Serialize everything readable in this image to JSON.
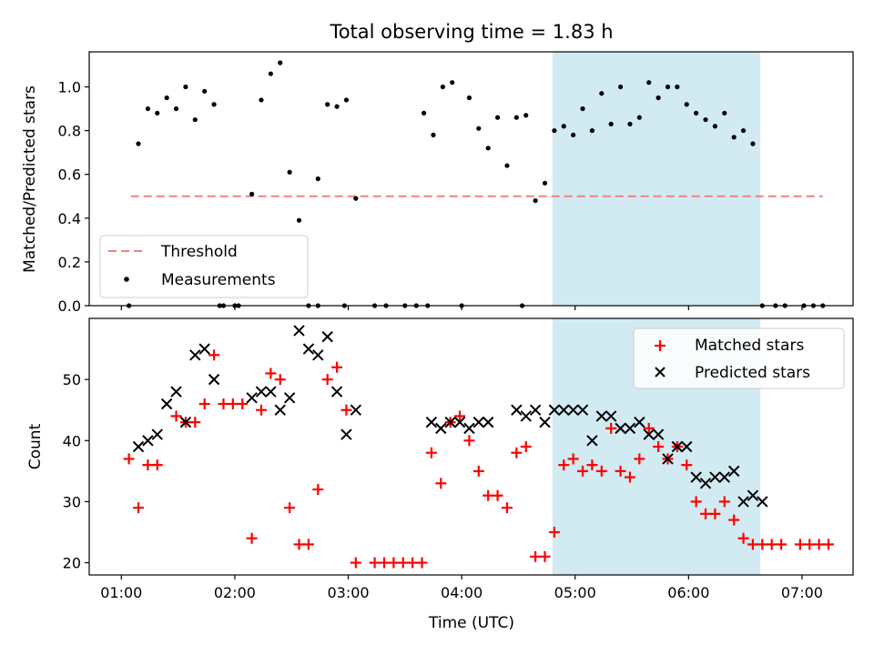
{
  "chart_data": [
    {
      "type": "scatter",
      "title": "Total observing time = 1.83 h",
      "ylabel": "Matched/Predicted stars",
      "xlim": [
        "00:43",
        "07:27"
      ],
      "ylim": [
        0,
        1.16
      ],
      "yticks": [
        "0.0",
        "0.2",
        "0.4",
        "0.6",
        "0.8",
        "1.0"
      ],
      "threshold": {
        "label": "Threshold",
        "value": 0.5,
        "x_start": "01:05",
        "x_end": "07:11",
        "color": "#f08080"
      },
      "highlight": {
        "x_start": "04:48",
        "x_end": "06:38",
        "color": "#add8e6"
      },
      "legend": {
        "placement": "lower-left",
        "entries": [
          "Threshold",
          "Measurements"
        ]
      },
      "series": [
        {
          "name": "Measurements",
          "color": "#000000",
          "x": [
            "01:04",
            "01:09",
            "01:14",
            "01:19",
            "01:24",
            "01:29",
            "01:34",
            "01:39",
            "01:44",
            "01:49",
            "01:54",
            "02:09",
            "02:14",
            "02:19",
            "02:24",
            "02:29",
            "02:34",
            "02:39",
            "02:44",
            "02:49",
            "02:54",
            "02:59",
            "03:04",
            "04:04",
            "04:09",
            "04:14",
            "04:19",
            "04:24",
            "04:29",
            "04:34",
            "04:39",
            "04:44",
            "04:49",
            "04:54",
            "04:59",
            "05:04",
            "05:09",
            "05:14",
            "05:19",
            "05:24",
            "05:29",
            "05:34",
            "05:39",
            "05:44",
            "05:49",
            "05:54",
            "05:59",
            "06:04",
            "06:09",
            "06:14",
            "06:19",
            "06:24",
            "06:29",
            "06:34",
            "06:39",
            "03:40",
            "03:45",
            "03:50",
            "03:55",
            "04:00",
            "01:52",
            "02:00",
            "02:02",
            "02:44",
            "02:58",
            "03:14",
            "03:20",
            "03:30",
            "03:36",
            "03:42",
            "04:32",
            "06:46",
            "06:51",
            "07:01",
            "07:06",
            "07:11"
          ],
          "y": [
            0.0,
            0.74,
            0.9,
            0.88,
            0.95,
            0.9,
            1.0,
            0.85,
            0.98,
            0.92,
            0.0,
            0.51,
            0.94,
            1.06,
            1.11,
            0.61,
            0.39,
            0.0,
            0.58,
            0.92,
            0.91,
            0.94,
            0.49,
            0.95,
            0.81,
            0.72,
            0.86,
            0.64,
            0.86,
            0.87,
            0.48,
            0.56,
            0.8,
            0.82,
            0.78,
            0.9,
            0.8,
            0.97,
            0.83,
            1.0,
            0.83,
            0.86,
            1.02,
            0.95,
            1.0,
            1.0,
            0.92,
            0.88,
            0.85,
            0.82,
            0.88,
            0.77,
            0.8,
            0.74,
            0.0,
            0.88,
            0.78,
            1.0,
            1.02,
            0.0,
            0.0,
            0.0,
            0.0,
            0.0,
            0.0,
            0.0,
            0.0,
            0.0,
            0.0,
            0.0,
            0.0,
            0.0,
            0.0,
            0.0,
            0.0,
            0.0
          ]
        }
      ]
    },
    {
      "type": "scatter",
      "xlabel": "Time (UTC)",
      "ylabel": "Count",
      "xlim": [
        "00:43",
        "07:27"
      ],
      "ylim": [
        18,
        60
      ],
      "yticks": [
        "20",
        "30",
        "40",
        "50"
      ],
      "xticks": [
        "01:00",
        "02:00",
        "03:00",
        "04:00",
        "05:00",
        "06:00",
        "07:00"
      ],
      "highlight": {
        "x_start": "04:48",
        "x_end": "06:38",
        "color": "#add8e6"
      },
      "legend": {
        "placement": "upper-right",
        "entries": [
          "Matched stars",
          "Predicted stars"
        ]
      },
      "series": [
        {
          "name": "Matched stars",
          "marker": "+",
          "color": "#ff0000",
          "x": [
            "01:04",
            "01:09",
            "01:14",
            "01:19",
            "01:29",
            "01:34",
            "01:39",
            "01:44",
            "01:49",
            "01:54",
            "01:59",
            "02:04",
            "02:09",
            "02:14",
            "02:19",
            "02:24",
            "02:29",
            "02:34",
            "02:39",
            "02:44",
            "02:49",
            "02:54",
            "02:59",
            "03:04",
            "03:14",
            "03:19",
            "03:24",
            "03:29",
            "03:34",
            "03:39",
            "03:44",
            "03:49",
            "03:54",
            "03:59",
            "04:04",
            "04:09",
            "04:14",
            "04:19",
            "04:24",
            "04:29",
            "04:34",
            "04:39",
            "04:44",
            "04:49",
            "04:54",
            "04:59",
            "05:04",
            "05:09",
            "05:14",
            "05:19",
            "05:24",
            "05:29",
            "05:34",
            "05:39",
            "05:44",
            "05:49",
            "05:54",
            "05:59",
            "06:04",
            "06:09",
            "06:14",
            "06:19",
            "06:24",
            "06:29",
            "06:34",
            "06:39",
            "06:44",
            "06:49",
            "06:59",
            "07:04",
            "07:09",
            "07:14"
          ],
          "y": [
            37,
            29,
            36,
            36,
            44,
            43,
            43,
            46,
            54,
            46,
            46,
            46,
            24,
            45,
            51,
            50,
            29,
            23,
            23,
            32,
            50,
            52,
            45,
            20,
            20,
            20,
            20,
            20,
            20,
            20,
            38,
            33,
            43,
            44,
            40,
            35,
            31,
            31,
            29,
            38,
            39,
            21,
            21,
            25,
            36,
            37,
            35,
            36,
            35,
            42,
            35,
            34,
            37,
            42,
            39,
            37,
            39,
            36,
            30,
            28,
            28,
            30,
            27,
            24,
            23,
            23,
            23,
            23,
            23,
            23,
            23,
            23
          ]
        },
        {
          "name": "Predicted stars",
          "marker": "x",
          "color": "#000000",
          "x": [
            "01:09",
            "01:14",
            "01:19",
            "01:24",
            "01:29",
            "01:34",
            "01:39",
            "01:44",
            "01:49",
            "02:09",
            "02:14",
            "02:19",
            "02:24",
            "02:29",
            "02:34",
            "02:39",
            "02:44",
            "02:49",
            "02:54",
            "02:59",
            "03:04",
            "03:44",
            "03:49",
            "03:54",
            "03:59",
            "04:04",
            "04:09",
            "04:14",
            "04:29",
            "04:34",
            "04:39",
            "04:44",
            "04:49",
            "04:54",
            "04:59",
            "05:04",
            "05:09",
            "05:14",
            "05:19",
            "05:24",
            "05:29",
            "05:34",
            "05:39",
            "05:44",
            "05:49",
            "05:54",
            "05:59",
            "06:04",
            "06:09",
            "06:14",
            "06:19",
            "06:24",
            "06:29",
            "06:34",
            "06:39"
          ],
          "y": [
            39,
            40,
            41,
            46,
            48,
            43,
            54,
            55,
            50,
            47,
            48,
            48,
            45,
            47,
            58,
            55,
            54,
            57,
            48,
            41,
            45,
            43,
            42,
            43,
            43,
            42,
            43,
            43,
            45,
            44,
            45,
            43,
            45,
            45,
            45,
            45,
            40,
            44,
            44,
            42,
            42,
            43,
            41,
            41,
            37,
            39,
            39,
            34,
            33,
            34,
            34,
            35,
            30,
            31,
            30
          ]
        }
      ]
    }
  ]
}
